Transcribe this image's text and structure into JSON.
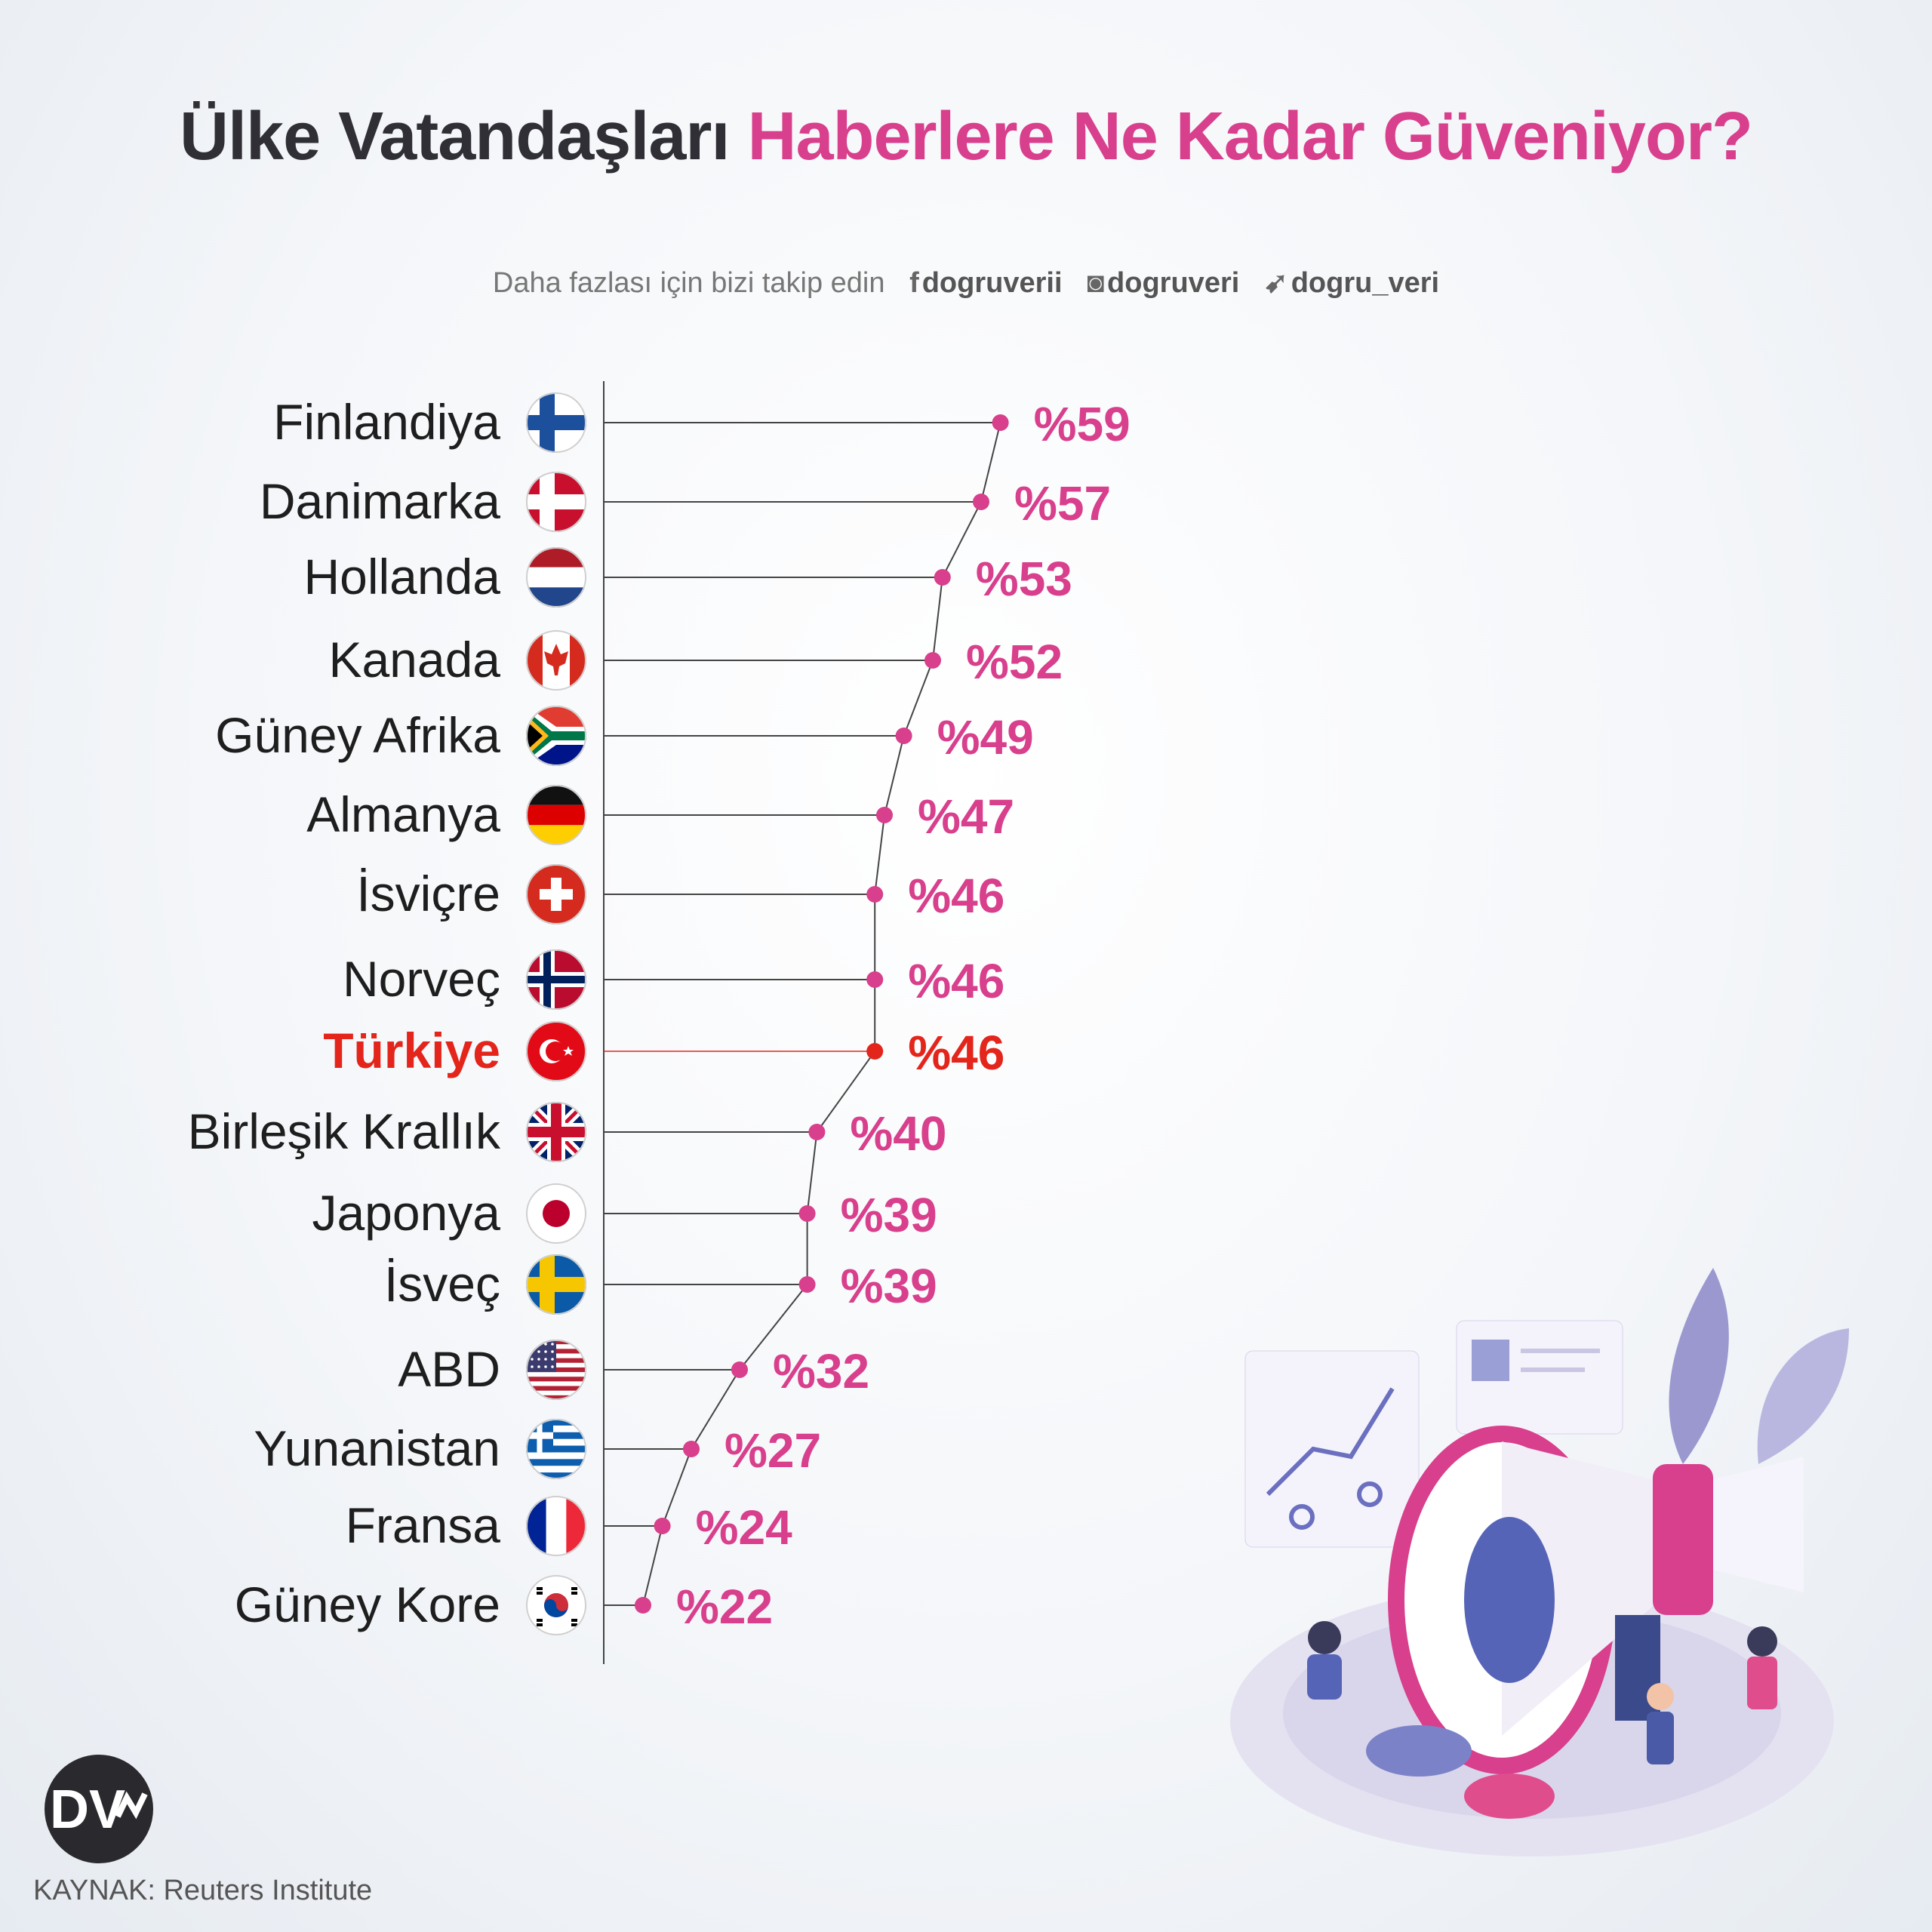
{
  "title": {
    "part1": "Ülke Vatandaşları",
    "part2": "Haberlere Ne Kadar Güveniyor?"
  },
  "follow": {
    "text": "Daha fazlası için bizi takip edin",
    "facebook": "dogruverii",
    "instagram": "dogruveri",
    "twitter": "dogru_veri"
  },
  "source": "KAYNAK: Reuters Institute",
  "logo_text": "DV",
  "colors": {
    "accent": "#d83f8c",
    "highlight": "#e3251b",
    "text": "#1e1e1e"
  },
  "chart_data": {
    "type": "dot",
    "categories": [
      "Finlandiya",
      "Danimarka",
      "Hollanda",
      "Kanada",
      "Güney Afrika",
      "Almanya",
      "İsviçre",
      "Norveç",
      "Türkiye",
      "Birleşik Krallık",
      "Japonya",
      "İsveç",
      "ABD",
      "Yunanistan",
      "Fransa",
      "Güney Kore"
    ],
    "values": [
      59,
      57,
      53,
      52,
      49,
      47,
      46,
      46,
      46,
      40,
      39,
      39,
      32,
      27,
      24,
      22
    ],
    "value_labels": [
      "%59",
      "%57",
      "%53",
      "%52",
      "%49",
      "%47",
      "%46",
      "%46",
      "%46",
      "%40",
      "%39",
      "%39",
      "%32",
      "%27",
      "%24",
      "%22"
    ],
    "highlight": "Türkiye",
    "flag_icons": [
      "finland-flag-icon",
      "denmark-flag-icon",
      "netherlands-flag-icon",
      "canada-flag-icon",
      "south-africa-flag-icon",
      "germany-flag-icon",
      "switzerland-flag-icon",
      "norway-flag-icon",
      "turkey-flag-icon",
      "uk-flag-icon",
      "japan-flag-icon",
      "sweden-flag-icon",
      "usa-flag-icon",
      "greece-flag-icon",
      "france-flag-icon",
      "south-korea-flag-icon"
    ]
  }
}
